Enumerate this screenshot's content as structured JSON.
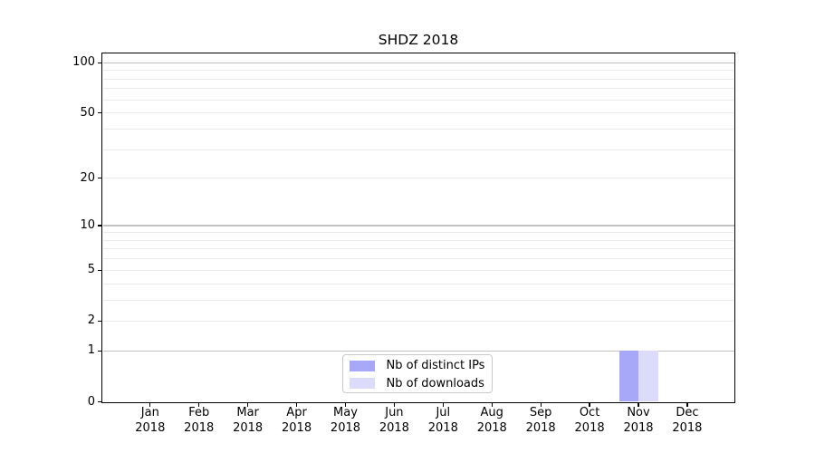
{
  "figure": {
    "title": "SHDZ 2018"
  },
  "colors": {
    "bar_distinct_ips": "#a8a8f8",
    "bar_downloads": "#dcdcfa",
    "grid_major": "#c2c2c2",
    "grid_minor": "#ebebeb",
    "spine": "#000000",
    "legend_border": "#c9c9c9"
  },
  "chart_data": {
    "type": "bar",
    "title": "SHDZ 2018",
    "xlabel": "",
    "ylabel": "",
    "categories": [
      "Jan 2018",
      "Feb 2018",
      "Mar 2018",
      "Apr 2018",
      "May 2018",
      "Jun 2018",
      "Jul 2018",
      "Aug 2018",
      "Sep 2018",
      "Oct 2018",
      "Nov 2018",
      "Dec 2018"
    ],
    "x": {
      "months": [
        "Jan",
        "Feb",
        "Mar",
        "Apr",
        "May",
        "Jun",
        "Jul",
        "Aug",
        "Sep",
        "Oct",
        "Nov",
        "Dec"
      ],
      "year": "2018"
    },
    "series": [
      {
        "name": "Nb of distinct IPs",
        "color": "#a8a8f8",
        "values": [
          0,
          0,
          0,
          0,
          0,
          0,
          0,
          0,
          0,
          0,
          1,
          0
        ]
      },
      {
        "name": "Nb of downloads",
        "color": "#dcdcfa",
        "values": [
          0,
          0,
          0,
          0,
          0,
          0,
          0,
          0,
          0,
          0,
          1,
          0
        ]
      }
    ],
    "y_axis": {
      "scale": "log1p",
      "lim": [
        0,
        113
      ],
      "tick_labels": [
        0,
        1,
        2,
        5,
        10,
        20,
        50,
        100
      ],
      "gridlines_dark": [
        1,
        10,
        100
      ],
      "gridlines_light": [
        2,
        3,
        4,
        5,
        6,
        7,
        8,
        9,
        20,
        30,
        40,
        50,
        60,
        70,
        80,
        90
      ]
    },
    "grid": "both",
    "legend_position": "lower center"
  }
}
